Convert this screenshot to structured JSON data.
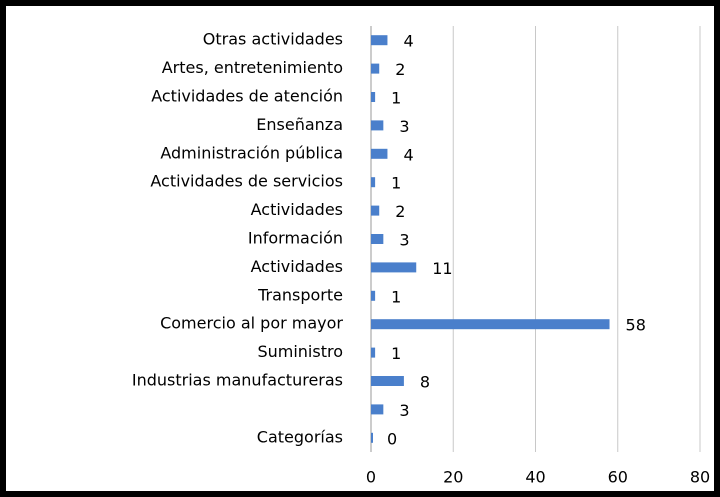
{
  "chart_data": {
    "type": "bar",
    "orientation": "horizontal",
    "categories": [
      "Otras actividades",
      "Artes, entretenimiento",
      "Actividades de atención",
      "Enseñanza",
      "Administración pública",
      "Actividades de servicios",
      "Actividades",
      "Información",
      "Actividades",
      "Transporte",
      "Comercio al por mayor",
      "Suministro",
      "Industrias manufactureras",
      null,
      "Categorías"
    ],
    "values": [
      4,
      2,
      1,
      3,
      4,
      1,
      2,
      3,
      11,
      1,
      58,
      1,
      8,
      3,
      0
    ],
    "color": "#4a7fcb",
    "xlim": [
      0,
      80
    ],
    "xticks": [
      0,
      20,
      40,
      60,
      80
    ],
    "grid": true
  }
}
